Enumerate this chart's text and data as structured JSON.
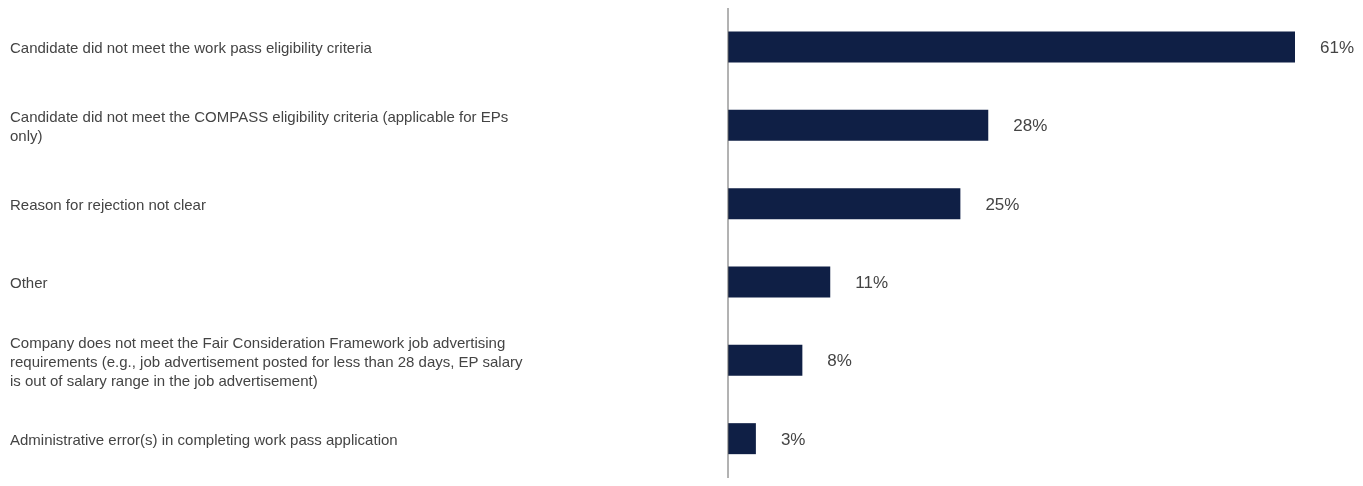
{
  "chart_data": {
    "type": "bar",
    "orientation": "horizontal",
    "categories": [
      "Candidate did not meet the work pass eligibility criteria",
      "Candidate did not meet the COMPASS eligibility criteria (applicable for EPs only)",
      "Reason for rejection not clear",
      "Other",
      "Company does not meet the Fair Consideration Framework job advertising requirements (e.g., job advertisement posted for less than 28 days, EP salary is out of salary range in the job advertisement)",
      "Administrative error(s) in completing work pass application"
    ],
    "values": [
      61,
      28,
      25,
      11,
      8,
      3
    ],
    "color": "#0f1f45",
    "data_labels": true,
    "value_labels": [
      "61%",
      "28%",
      "25%",
      "11%",
      "8%",
      "3%"
    ]
  }
}
